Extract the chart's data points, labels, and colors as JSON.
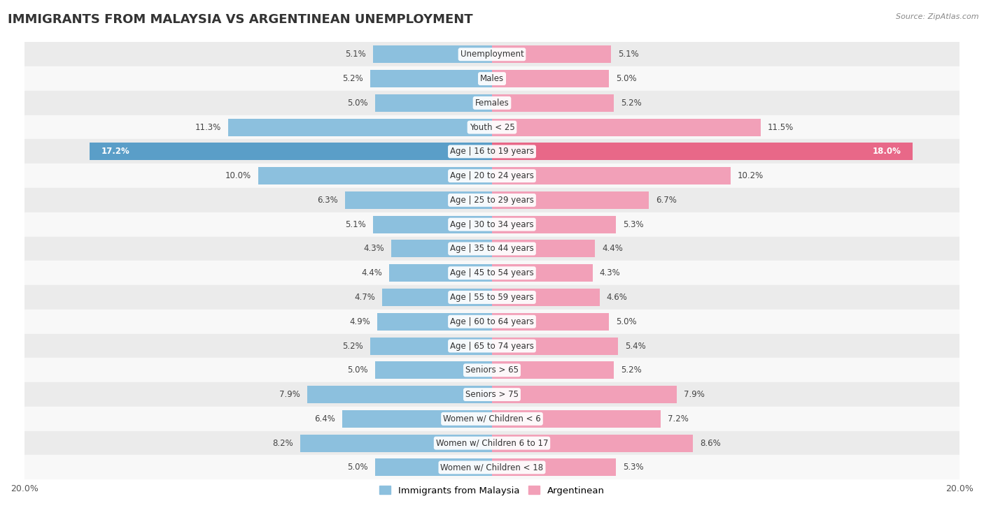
{
  "title": "IMMIGRANTS FROM MALAYSIA VS ARGENTINEAN UNEMPLOYMENT",
  "source": "Source: ZipAtlas.com",
  "categories": [
    "Unemployment",
    "Males",
    "Females",
    "Youth < 25",
    "Age | 16 to 19 years",
    "Age | 20 to 24 years",
    "Age | 25 to 29 years",
    "Age | 30 to 34 years",
    "Age | 35 to 44 years",
    "Age | 45 to 54 years",
    "Age | 55 to 59 years",
    "Age | 60 to 64 years",
    "Age | 65 to 74 years",
    "Seniors > 65",
    "Seniors > 75",
    "Women w/ Children < 6",
    "Women w/ Children 6 to 17",
    "Women w/ Children < 18"
  ],
  "malaysia_values": [
    5.1,
    5.2,
    5.0,
    11.3,
    17.2,
    10.0,
    6.3,
    5.1,
    4.3,
    4.4,
    4.7,
    4.9,
    5.2,
    5.0,
    7.9,
    6.4,
    8.2,
    5.0
  ],
  "argentina_values": [
    5.1,
    5.0,
    5.2,
    11.5,
    18.0,
    10.2,
    6.7,
    5.3,
    4.4,
    4.3,
    4.6,
    5.0,
    5.4,
    5.2,
    7.9,
    7.2,
    8.6,
    5.3
  ],
  "malaysia_color": "#8cc0de",
  "argentina_color": "#f2a0b8",
  "malaysia_highlight_color": "#5a9ec8",
  "argentina_highlight_color": "#e86888",
  "bar_height": 0.72,
  "xlim": 20.0,
  "row_colors": [
    "#ebebeb",
    "#f8f8f8"
  ],
  "title_fontsize": 13,
  "label_fontsize": 8.5,
  "value_fontsize": 8.5,
  "legend_fontsize": 9.5,
  "axis_tick_fontsize": 9
}
